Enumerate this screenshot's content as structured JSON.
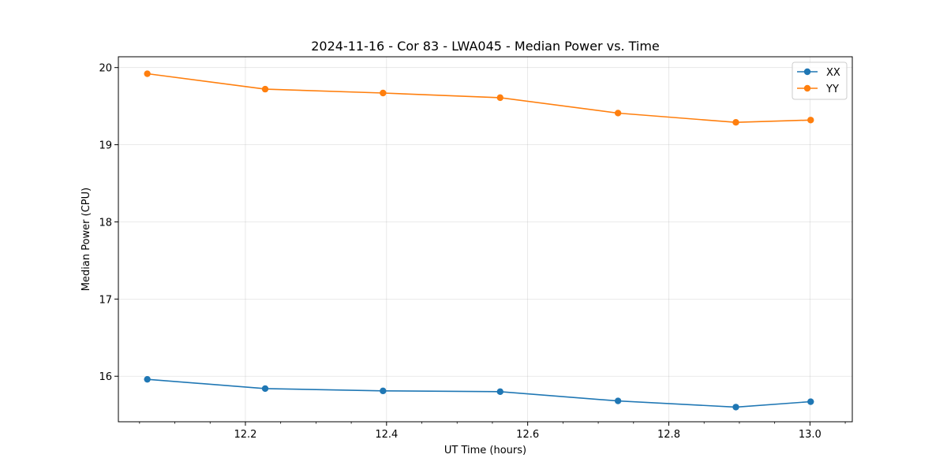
{
  "chart_data": {
    "type": "line",
    "title": "2024-11-16 - Cor 83 - LWA045 - Median Power vs. Time",
    "xlabel": "UT Time (hours)",
    "ylabel": "Median Power (CPU)",
    "xlim": [
      12.02,
      13.06
    ],
    "ylim": [
      15.41,
      20.14
    ],
    "x_ticks": [
      12.2,
      12.4,
      12.6,
      12.8,
      13.0
    ],
    "x_tick_labels": [
      "12.2",
      "12.4",
      "12.6",
      "12.8",
      "13.0"
    ],
    "x_minor_step": 0.05,
    "y_ticks": [
      16,
      17,
      18,
      19,
      20
    ],
    "y_tick_labels": [
      "16",
      "17",
      "18",
      "19",
      "20"
    ],
    "grid": true,
    "legend_position": "top-right",
    "x": [
      12.061,
      12.228,
      12.395,
      12.561,
      12.728,
      12.895,
      13.001
    ],
    "series": [
      {
        "name": "XX",
        "color": "#1f77b4",
        "values": [
          15.96,
          15.84,
          15.81,
          15.8,
          15.68,
          15.6,
          15.67
        ]
      },
      {
        "name": "YY",
        "color": "#ff7f0e",
        "values": [
          19.92,
          19.72,
          19.67,
          19.61,
          19.41,
          19.29,
          19.32
        ]
      }
    ]
  }
}
